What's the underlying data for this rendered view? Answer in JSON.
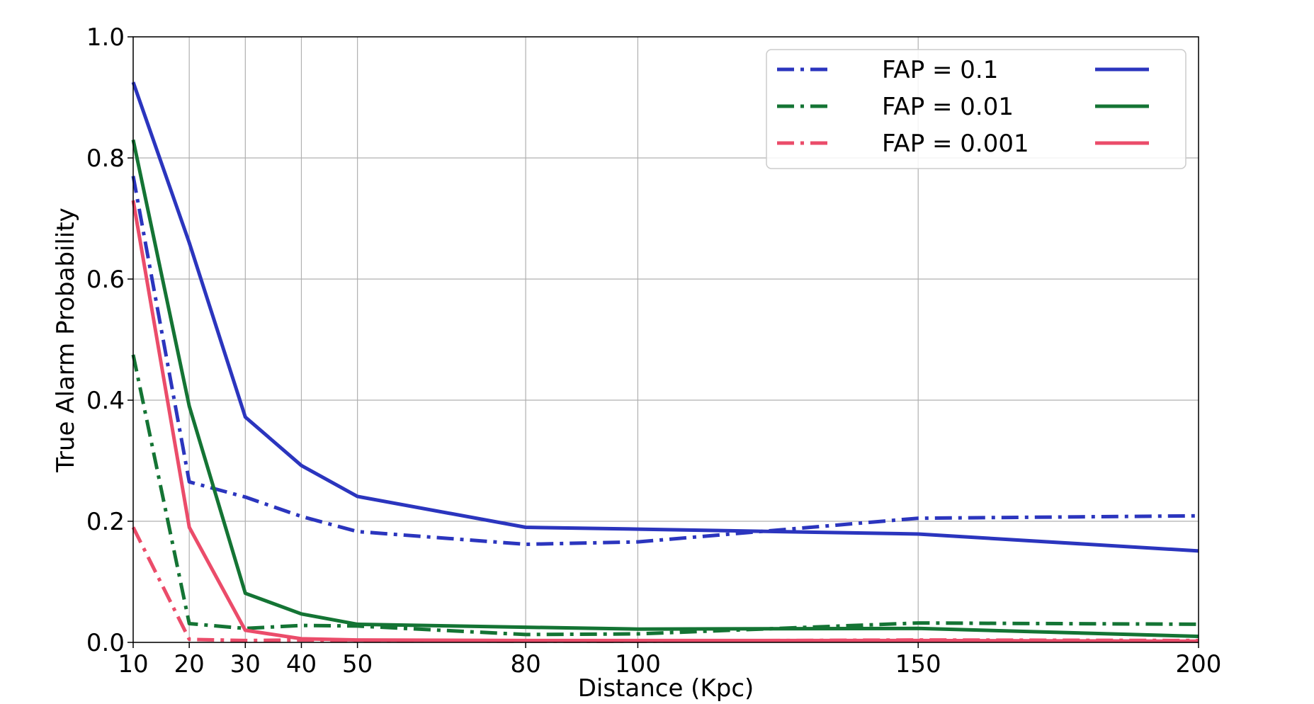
{
  "chart_data": {
    "type": "line",
    "xlabel": "Distance (Kpc)",
    "ylabel": "True Alarm Probability",
    "xlim": [
      10,
      200
    ],
    "ylim": [
      0.0,
      1.0
    ],
    "x_ticks": [
      10,
      20,
      30,
      40,
      50,
      80,
      100,
      150,
      200
    ],
    "y_ticks": [
      "0.0",
      "0.2",
      "0.4",
      "0.6",
      "0.8",
      "1.0"
    ],
    "grid": true,
    "legend_position": "top-right",
    "x": [
      10,
      20,
      30,
      40,
      50,
      80,
      100,
      150,
      200
    ],
    "series": [
      {
        "group": "FAP = 0.1",
        "style": "dashdot",
        "color": "#2b35be",
        "values": [
          0.77,
          0.265,
          0.24,
          0.208,
          0.183,
          0.162,
          0.166,
          0.205,
          0.209
        ]
      },
      {
        "group": "FAP = 0.1",
        "style": "solid",
        "color": "#2b35be",
        "values": [
          0.925,
          0.66,
          0.372,
          0.292,
          0.241,
          0.19,
          0.187,
          0.179,
          0.151
        ]
      },
      {
        "group": "FAP = 0.01",
        "style": "dashdot",
        "color": "#147434",
        "values": [
          0.475,
          0.031,
          0.023,
          0.028,
          0.027,
          0.013,
          0.014,
          0.032,
          0.03
        ]
      },
      {
        "group": "FAP = 0.01",
        "style": "solid",
        "color": "#147434",
        "values": [
          0.83,
          0.39,
          0.081,
          0.047,
          0.03,
          0.025,
          0.022,
          0.023,
          0.01
        ]
      },
      {
        "group": "FAP = 0.001",
        "style": "dashdot",
        "color": "#eb4c6a",
        "values": [
          0.19,
          0.005,
          0.003,
          0.004,
          0.003,
          0.002,
          0.002,
          0.004,
          0.003
        ]
      },
      {
        "group": "FAP = 0.001",
        "style": "solid",
        "color": "#eb4c6a",
        "values": [
          0.73,
          0.19,
          0.02,
          0.006,
          0.004,
          0.003,
          0.003,
          0.003,
          0.002
        ]
      }
    ],
    "legend": [
      {
        "label": "FAP = 0.1",
        "color": "#2b35be"
      },
      {
        "label": "FAP = 0.01",
        "color": "#147434"
      },
      {
        "label": "FAP = 0.001",
        "color": "#eb4c6a"
      }
    ]
  }
}
